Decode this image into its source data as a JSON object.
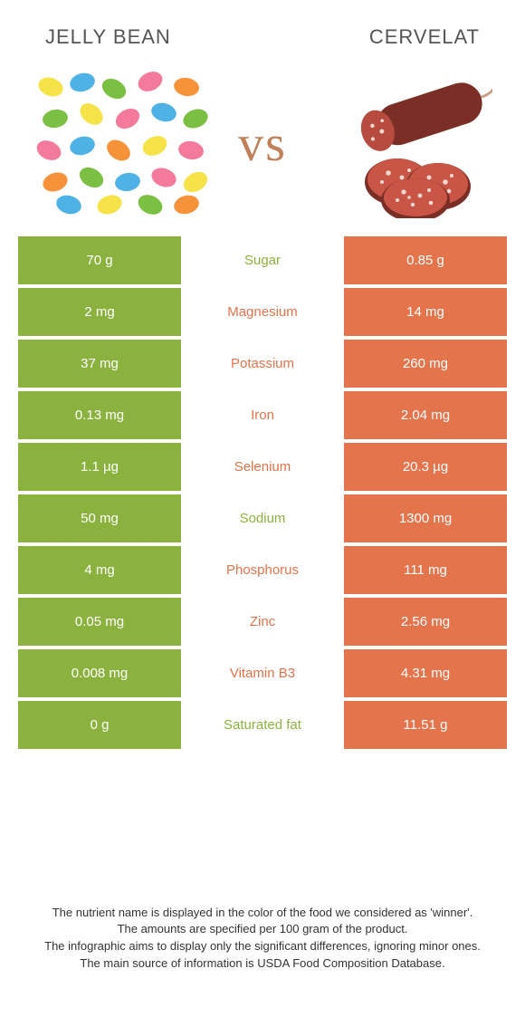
{
  "header": {
    "left_title": "Jelly bean",
    "right_title": "Cervelat",
    "vs": "vs"
  },
  "colors": {
    "left": "#8bb23e",
    "right": "#e4744c",
    "text": "#333333",
    "background": "#ffffff"
  },
  "rows": [
    {
      "left": "70 g",
      "label": "Sugar",
      "right": "0.85 g",
      "winner": "left"
    },
    {
      "left": "2 mg",
      "label": "Magnesium",
      "right": "14 mg",
      "winner": "right"
    },
    {
      "left": "37 mg",
      "label": "Potassium",
      "right": "260 mg",
      "winner": "right"
    },
    {
      "left": "0.13 mg",
      "label": "Iron",
      "right": "2.04 mg",
      "winner": "right"
    },
    {
      "left": "1.1 µg",
      "label": "Selenium",
      "right": "20.3 µg",
      "winner": "right"
    },
    {
      "left": "50 mg",
      "label": "Sodium",
      "right": "1300 mg",
      "winner": "left"
    },
    {
      "left": "4 mg",
      "label": "Phosphorus",
      "right": "111 mg",
      "winner": "right"
    },
    {
      "left": "0.05 mg",
      "label": "Zinc",
      "right": "2.56 mg",
      "winner": "right"
    },
    {
      "left": "0.008 mg",
      "label": "Vitamin B3",
      "right": "4.31 mg",
      "winner": "right"
    },
    {
      "left": "0 g",
      "label": "Saturated fat",
      "right": "11.51 g",
      "winner": "left"
    }
  ],
  "footer": {
    "line1": "The nutrient name is displayed in the color of the food we considered as 'winner'.",
    "line2": "The amounts are specified per 100 gram of the product.",
    "line3": "The infographic aims to display only the significant differences, ignoring minor ones.",
    "line4": "The main source of information is USDA Food Composition Database."
  }
}
